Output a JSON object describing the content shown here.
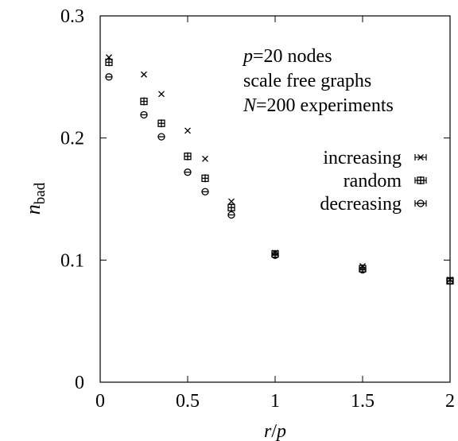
{
  "chart_data": {
    "type": "scatter",
    "title": "",
    "xlabel": "r/p",
    "ylabel": "n_bad",
    "xlim": [
      0,
      2
    ],
    "ylim": [
      0,
      0.3
    ],
    "xticks": [
      0,
      0.5,
      1,
      1.5,
      2
    ],
    "xtick_labels": [
      "0",
      "0.5",
      "1",
      "1.5",
      "2"
    ],
    "yticks": [
      0,
      0.1,
      0.2,
      0.3
    ],
    "ytick_labels": [
      "0",
      "0.1",
      "0.2",
      "0.3"
    ],
    "grid": false,
    "legend_position": "right",
    "annotations": [
      {
        "lines": [
          [
            "p",
            "=20 nodes"
          ],
          [
            "",
            "scale free graphs"
          ],
          [
            "N",
            "=200 experiments"
          ]
        ]
      }
    ],
    "series": [
      {
        "name": "increasing",
        "marker": "x",
        "points": [
          {
            "x": 0.05,
            "y": 0.266
          },
          {
            "x": 0.25,
            "y": 0.252
          },
          {
            "x": 0.35,
            "y": 0.236
          },
          {
            "x": 0.5,
            "y": 0.206
          },
          {
            "x": 0.6,
            "y": 0.183
          },
          {
            "x": 0.75,
            "y": 0.148
          },
          {
            "x": 1.0,
            "y": 0.106
          },
          {
            "x": 1.5,
            "y": 0.095
          },
          {
            "x": 2.0,
            "y": 0.084
          }
        ]
      },
      {
        "name": "random",
        "marker": "square",
        "points": [
          {
            "x": 0.05,
            "y": 0.262
          },
          {
            "x": 0.25,
            "y": 0.23
          },
          {
            "x": 0.35,
            "y": 0.212
          },
          {
            "x": 0.5,
            "y": 0.185
          },
          {
            "x": 0.6,
            "y": 0.167
          },
          {
            "x": 0.75,
            "y": 0.143
          },
          {
            "x": 1.0,
            "y": 0.105
          },
          {
            "x": 1.5,
            "y": 0.093
          },
          {
            "x": 2.0,
            "y": 0.083
          }
        ]
      },
      {
        "name": "decreasing",
        "marker": "circle",
        "points": [
          {
            "x": 0.05,
            "y": 0.25
          },
          {
            "x": 0.25,
            "y": 0.219
          },
          {
            "x": 0.35,
            "y": 0.201
          },
          {
            "x": 0.5,
            "y": 0.172
          },
          {
            "x": 0.6,
            "y": 0.156
          },
          {
            "x": 0.75,
            "y": 0.137
          },
          {
            "x": 1.0,
            "y": 0.104
          },
          {
            "x": 1.5,
            "y": 0.092
          },
          {
            "x": 2.0,
            "y": 0.083
          }
        ]
      }
    ]
  }
}
